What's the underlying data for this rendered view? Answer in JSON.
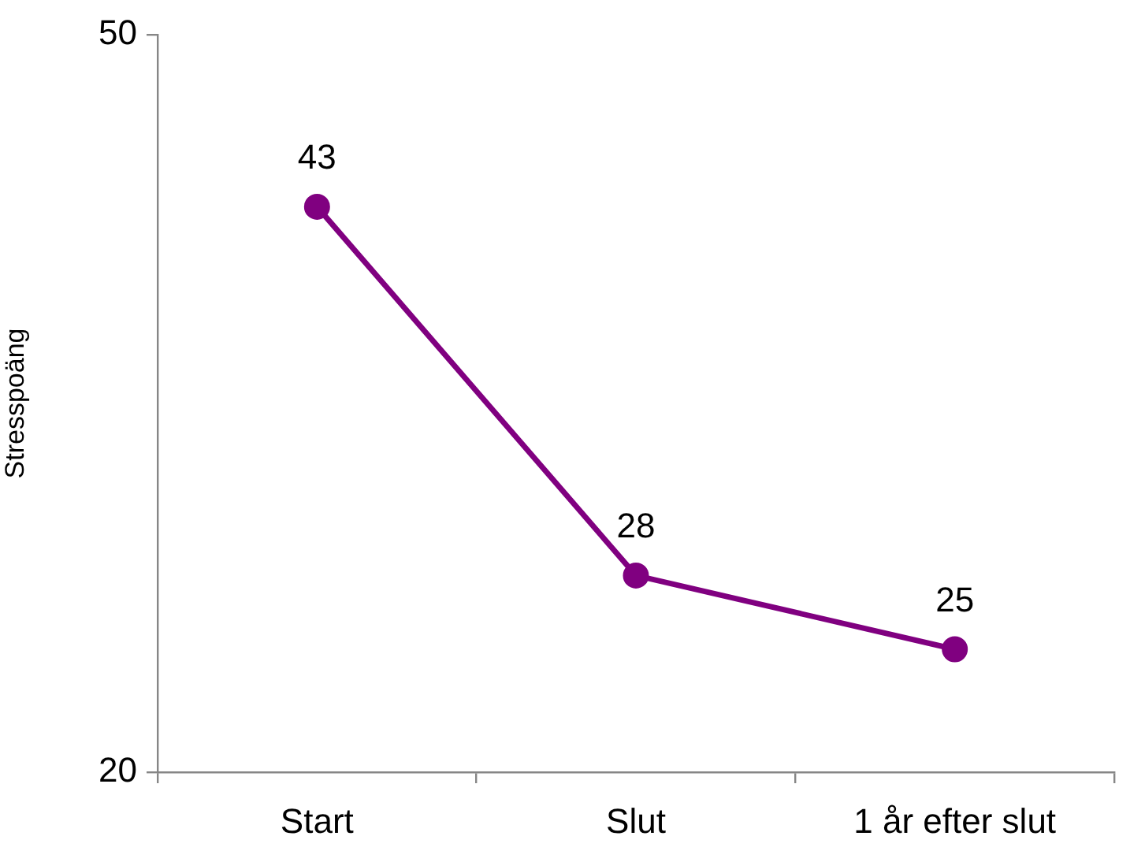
{
  "chart_data": {
    "type": "line",
    "ylabel": "Stresspoäng",
    "categories": [
      "Start",
      "Slut",
      "1 år efter slut"
    ],
    "series": [
      {
        "color": "#800080",
        "values": [
          43,
          28,
          25
        ]
      }
    ],
    "ylim": [
      20,
      50
    ],
    "yticks": [
      20,
      50
    ],
    "grid": false,
    "marker": "circle",
    "line_style": "solid",
    "data_labels": true
  }
}
